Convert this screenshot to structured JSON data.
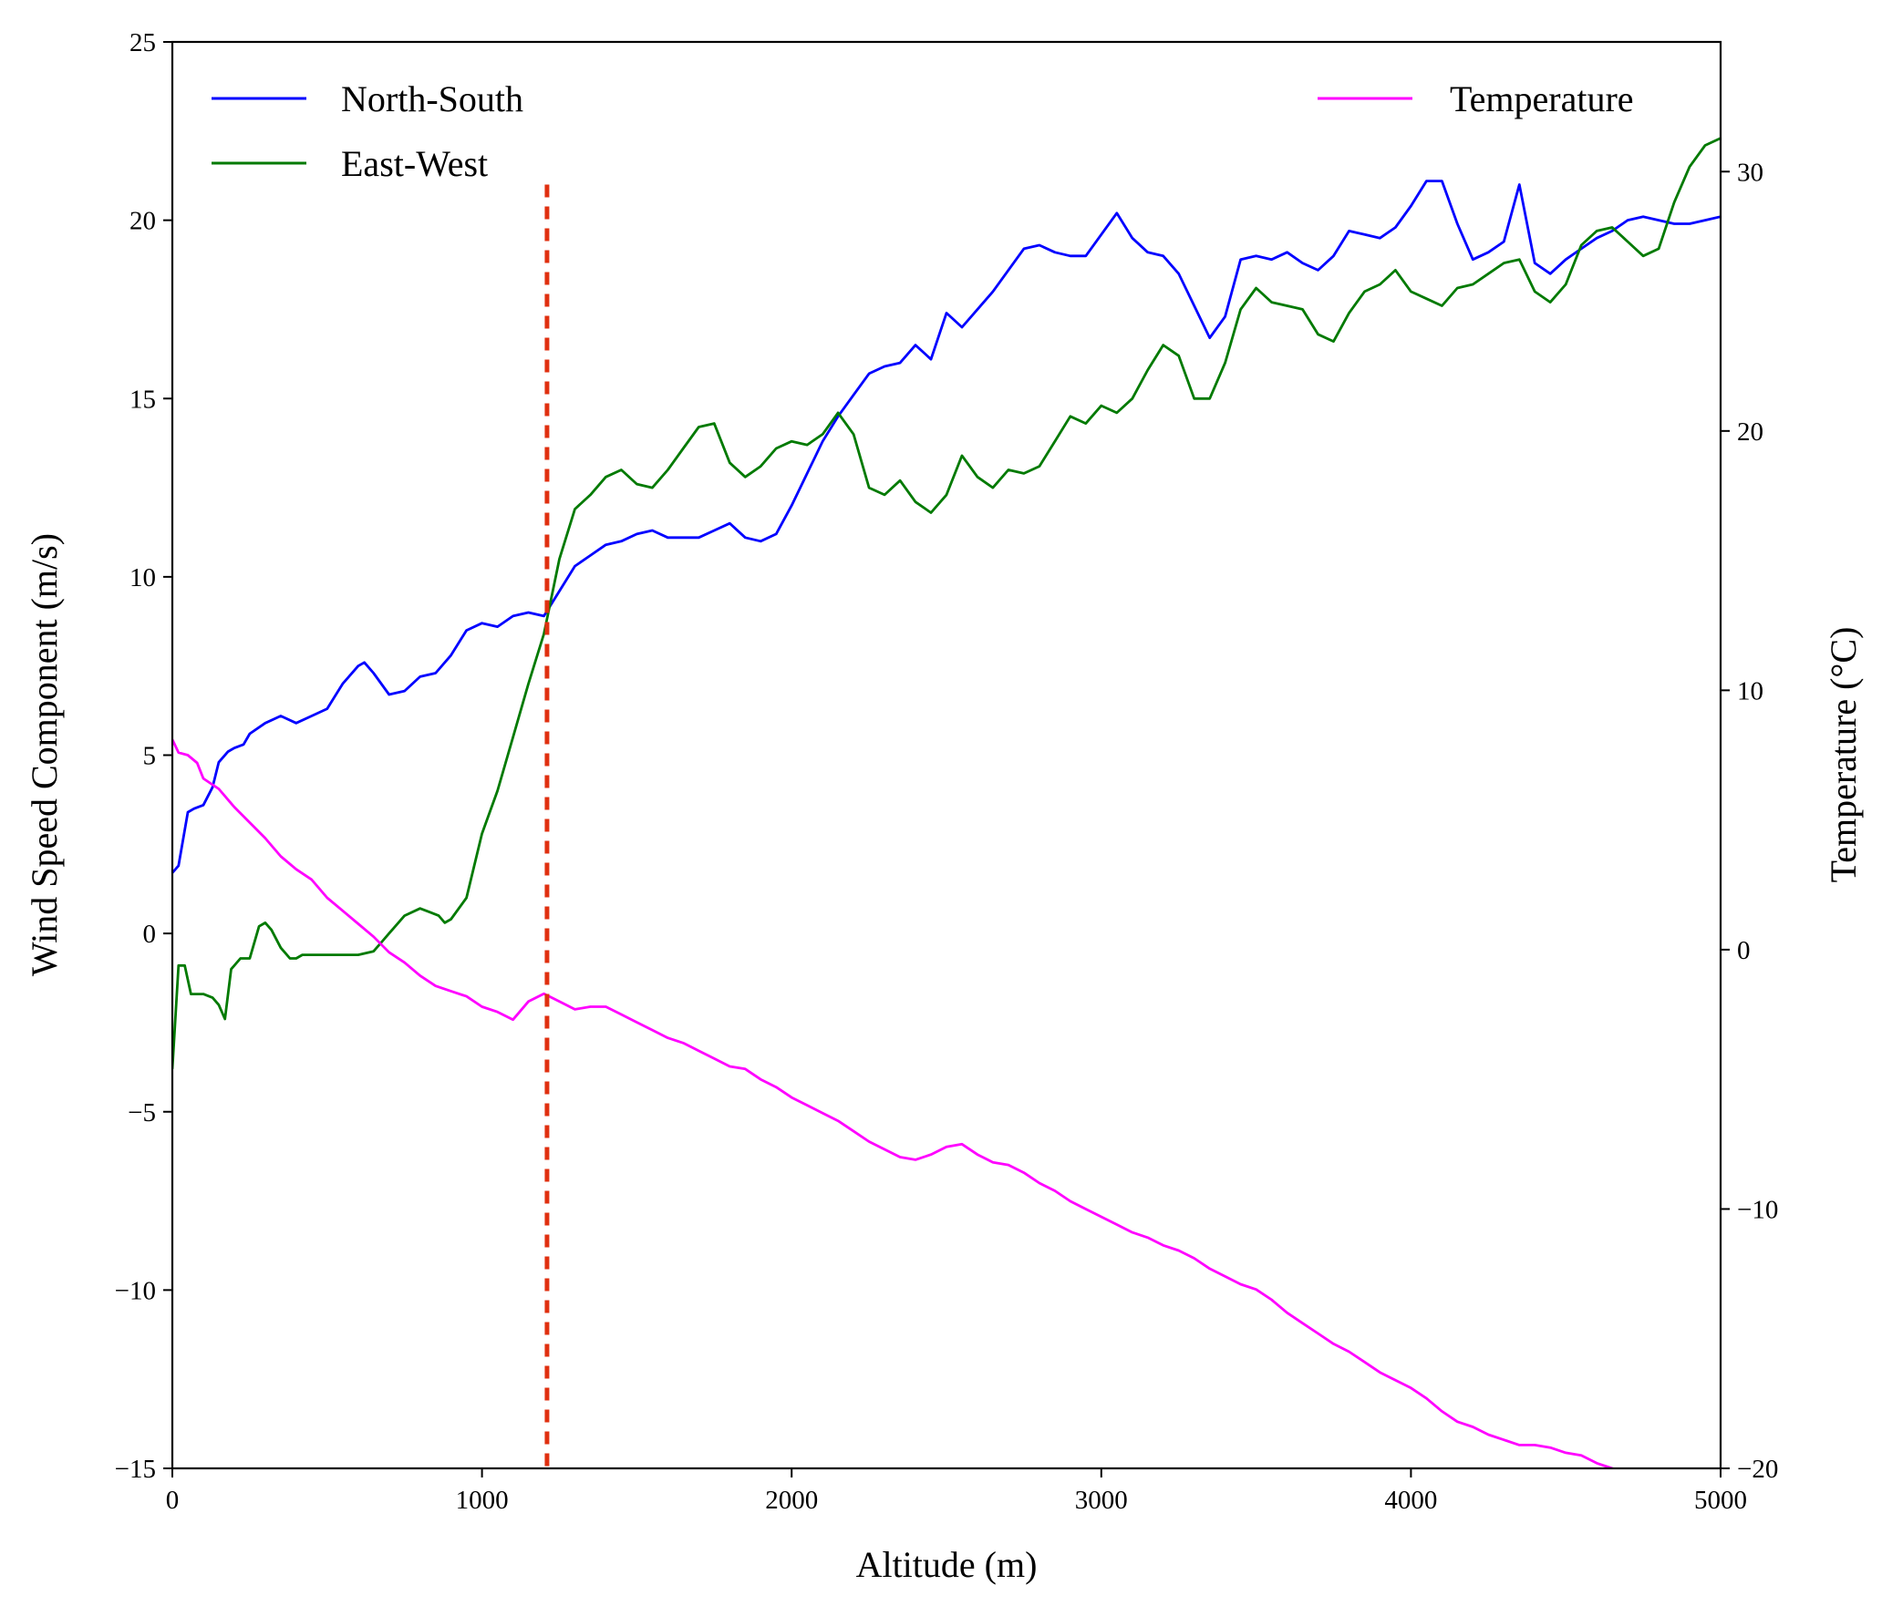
{
  "chart_data": {
    "type": "line",
    "xlabel": "Altitude (m)",
    "ylabel_left": "Wind Speed Component (m/s)",
    "ylabel_right": "Temperature (°C)",
    "xlim": [
      0,
      5000
    ],
    "ylim_left": [
      -15,
      25
    ],
    "ylim_right": [
      -20,
      35
    ],
    "x_ticks": [
      "0",
      "1000",
      "2000",
      "3000",
      "4000",
      "5000"
    ],
    "y_left_ticks": [
      "−15",
      "−10",
      "−5",
      "0",
      "5",
      "10",
      "15",
      "20",
      "25"
    ],
    "y_right_ticks": [
      "−20",
      "−10",
      "0",
      "10",
      "20",
      "30"
    ],
    "grid": false,
    "legend_left_placement": "upper-left",
    "legend_right_placement": "upper-right",
    "marker_line": {
      "x": 1210,
      "y_top": 21,
      "color": "#e03010",
      "style": "dashed"
    },
    "series": [
      {
        "name": "North-South",
        "axis": "left",
        "color": "#0000ff",
        "x": [
          0,
          20,
          50,
          70,
          100,
          130,
          150,
          180,
          200,
          230,
          250,
          300,
          350,
          400,
          450,
          500,
          550,
          600,
          620,
          650,
          700,
          750,
          800,
          850,
          900,
          950,
          1000,
          1050,
          1100,
          1150,
          1200,
          1250,
          1300,
          1350,
          1400,
          1450,
          1500,
          1550,
          1600,
          1650,
          1700,
          1750,
          1800,
          1850,
          1900,
          1950,
          2000,
          2050,
          2100,
          2150,
          2200,
          2250,
          2300,
          2350,
          2400,
          2450,
          2500,
          2550,
          2600,
          2650,
          2700,
          2750,
          2800,
          2850,
          2900,
          2950,
          3000,
          3050,
          3100,
          3150,
          3200,
          3250,
          3300,
          3350,
          3400,
          3450,
          3500,
          3550,
          3600,
          3650,
          3700,
          3750,
          3800,
          3850,
          3900,
          3950,
          4000,
          4050,
          4100,
          4150,
          4200,
          4250,
          4300,
          4350,
          4400,
          4450,
          4500,
          4550,
          4600,
          4650,
          4700,
          4750,
          4800,
          4850,
          4900,
          4950,
          5000
        ],
        "y": [
          1.7,
          1.9,
          3.4,
          3.5,
          3.6,
          4.1,
          4.8,
          5.1,
          5.2,
          5.3,
          5.6,
          5.9,
          6.1,
          5.9,
          6.1,
          6.3,
          7.0,
          7.5,
          7.6,
          7.3,
          6.7,
          6.8,
          7.2,
          7.3,
          7.8,
          8.5,
          8.7,
          8.6,
          8.9,
          9.0,
          8.9,
          9.6,
          10.3,
          10.6,
          10.9,
          11.0,
          11.2,
          11.3,
          11.1,
          11.1,
          11.1,
          11.3,
          11.5,
          11.1,
          11.0,
          11.2,
          12.0,
          12.9,
          13.8,
          14.5,
          15.1,
          15.7,
          15.9,
          16.0,
          16.5,
          16.1,
          17.4,
          17.0,
          17.5,
          18.0,
          18.6,
          19.2,
          19.3,
          19.1,
          19.0,
          19.0,
          19.6,
          20.2,
          19.5,
          19.1,
          19.0,
          18.5,
          17.6,
          16.7,
          17.3,
          18.9,
          19.0,
          18.9,
          19.1,
          18.8,
          18.6,
          19.0,
          19.7,
          19.6,
          19.5,
          19.8,
          20.4,
          21.1,
          21.1,
          19.9,
          18.9,
          19.1,
          19.4,
          21.0,
          18.8,
          18.5,
          18.9,
          19.2,
          19.5,
          19.7,
          20.0,
          20.1,
          20.0,
          19.9,
          19.9,
          20.0,
          20.1
        ],
        "note": ""
      },
      {
        "name": "East-West",
        "axis": "left",
        "color": "#007a00",
        "x": [
          0,
          20,
          40,
          60,
          80,
          100,
          130,
          150,
          170,
          190,
          220,
          250,
          280,
          300,
          320,
          350,
          380,
          400,
          420,
          450,
          480,
          500,
          550,
          600,
          650,
          680,
          700,
          750,
          800,
          830,
          860,
          880,
          900,
          950,
          1000,
          1050,
          1100,
          1150,
          1200,
          1250,
          1300,
          1350,
          1400,
          1450,
          1500,
          1550,
          1600,
          1650,
          1700,
          1750,
          1800,
          1850,
          1900,
          1950,
          2000,
          2050,
          2100,
          2150,
          2200,
          2250,
          2300,
          2350,
          2400,
          2450,
          2500,
          2550,
          2600,
          2650,
          2700,
          2750,
          2800,
          2850,
          2900,
          2950,
          3000,
          3050,
          3100,
          3150,
          3200,
          3250,
          3300,
          3350,
          3400,
          3450,
          3500,
          3550,
          3600,
          3650,
          3700,
          3750,
          3800,
          3850,
          3900,
          3950,
          4000,
          4050,
          4100,
          4150,
          4200,
          4250,
          4300,
          4350,
          4400,
          4450,
          4500,
          4550,
          4600,
          4650,
          4700,
          4750,
          4800,
          4850,
          4900,
          4950,
          5000
        ],
        "y": [
          -3.8,
          -0.9,
          -0.9,
          -1.7,
          -1.7,
          -1.7,
          -1.8,
          -2.0,
          -2.4,
          -1.0,
          -0.7,
          -0.7,
          0.2,
          0.3,
          0.1,
          -0.4,
          -0.7,
          -0.7,
          -0.6,
          -0.6,
          -0.6,
          -0.6,
          -0.6,
          -0.6,
          -0.5,
          -0.2,
          0.0,
          0.5,
          0.7,
          0.6,
          0.5,
          0.3,
          0.4,
          1.0,
          2.8,
          4.0,
          5.5,
          7.0,
          8.4,
          10.5,
          11.9,
          12.3,
          12.8,
          13.0,
          12.6,
          12.5,
          13.0,
          13.6,
          14.2,
          14.3,
          13.2,
          12.8,
          13.1,
          13.6,
          13.8,
          13.7,
          14.0,
          14.6,
          14.0,
          12.5,
          12.3,
          12.7,
          12.1,
          11.8,
          12.3,
          13.4,
          12.8,
          12.5,
          13.0,
          12.9,
          13.1,
          13.8,
          14.5,
          14.3,
          14.8,
          14.6,
          15.0,
          15.8,
          16.5,
          16.2,
          15.0,
          15.0,
          16.0,
          17.5,
          18.1,
          17.7,
          17.6,
          17.5,
          16.8,
          16.6,
          17.4,
          18.0,
          18.2,
          18.6,
          18.0,
          17.8,
          17.6,
          18.1,
          18.2,
          18.5,
          18.8,
          18.9,
          18.0,
          17.7,
          18.2,
          19.3,
          19.7,
          19.8,
          19.4,
          19.0,
          19.2,
          20.5,
          21.5,
          22.1,
          22.3
        ]
      },
      {
        "name": "Temperature",
        "axis": "right",
        "color": "#ff00ff",
        "x": [
          0,
          20,
          50,
          80,
          100,
          150,
          200,
          250,
          300,
          350,
          400,
          450,
          500,
          550,
          600,
          650,
          700,
          750,
          800,
          850,
          900,
          950,
          1000,
          1050,
          1100,
          1150,
          1200,
          1250,
          1300,
          1350,
          1400,
          1450,
          1500,
          1550,
          1600,
          1650,
          1700,
          1750,
          1800,
          1850,
          1900,
          1950,
          2000,
          2050,
          2100,
          2150,
          2200,
          2250,
          2300,
          2350,
          2400,
          2450,
          2500,
          2550,
          2600,
          2650,
          2700,
          2750,
          2800,
          2850,
          2900,
          2950,
          3000,
          3050,
          3100,
          3150,
          3200,
          3250,
          3300,
          3350,
          3400,
          3450,
          3500,
          3550,
          3600,
          3650,
          3700,
          3750,
          3800,
          3850,
          3900,
          3950,
          4000,
          4050,
          4100,
          4150,
          4200,
          4250,
          4300,
          4350,
          4400,
          4450,
          4500,
          4550,
          4600,
          4650,
          4700
        ],
        "y": [
          8.1,
          7.6,
          7.5,
          7.2,
          6.6,
          6.2,
          5.5,
          4.9,
          4.3,
          3.6,
          3.1,
          2.7,
          2.0,
          1.5,
          1.0,
          0.5,
          -0.1,
          -0.5,
          -1.0,
          -1.4,
          -1.6,
          -1.8,
          -2.2,
          -2.4,
          -2.7,
          -2.0,
          -1.7,
          -2.0,
          -2.3,
          -2.2,
          -2.2,
          -2.5,
          -2.8,
          -3.1,
          -3.4,
          -3.6,
          -3.9,
          -4.2,
          -4.5,
          -4.6,
          -5.0,
          -5.3,
          -5.7,
          -6.0,
          -6.3,
          -6.6,
          -7.0,
          -7.4,
          -7.7,
          -8.0,
          -8.1,
          -7.9,
          -7.6,
          -7.5,
          -7.9,
          -8.2,
          -8.3,
          -8.6,
          -9.0,
          -9.3,
          -9.7,
          -10.0,
          -10.3,
          -10.6,
          -10.9,
          -11.1,
          -11.4,
          -11.6,
          -11.9,
          -12.3,
          -12.6,
          -12.9,
          -13.1,
          -13.5,
          -14.0,
          -14.4,
          -14.8,
          -15.2,
          -15.5,
          -15.9,
          -16.3,
          -16.6,
          -16.9,
          -17.3,
          -17.8,
          -18.2,
          -18.4,
          -18.7,
          -18.9,
          -19.1,
          -19.1,
          -19.2,
          -19.4,
          -19.5,
          -19.8,
          -20.0,
          -20.2
        ]
      }
    ]
  }
}
